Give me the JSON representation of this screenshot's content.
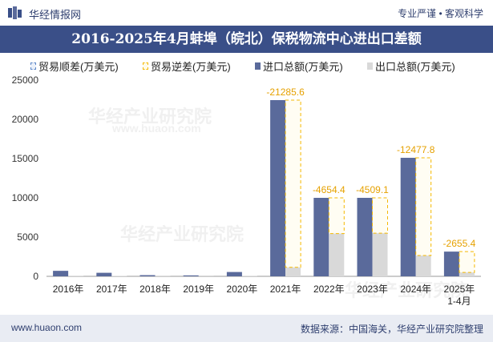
{
  "header": {
    "brand": "华经情报网",
    "slogan": "专业严谨 • 客观科学"
  },
  "footer": {
    "website": "www.huaon.com",
    "source": "数据来源：中国海关，华经产业研究院整理"
  },
  "watermark": {
    "text": "华经产业研究院",
    "url": "www.huaon.com"
  },
  "colors": {
    "import": "#5a6a9b",
    "export": "#d9d9d9",
    "deficit": "#f5b800",
    "surplus": "#5b86c8",
    "title_bg": "#3a4f88"
  },
  "chart_data": {
    "type": "bar",
    "title": "2016-2025年4月蚌埠（皖北）保税物流中心进出口差额",
    "categories": [
      "2016年",
      "2017年",
      "2018年",
      "2019年",
      "2020年",
      "2021年",
      "2022年",
      "2023年",
      "2024年",
      "2025年\n1-4月"
    ],
    "ylim": [
      0,
      25000
    ],
    "yticks": [
      0,
      5000,
      10000,
      15000,
      20000,
      25000
    ],
    "legend_position": "top",
    "series": [
      {
        "name": "贸易顺差(万美元)",
        "kind": "surplus",
        "values": [
          null,
          null,
          null,
          null,
          null,
          null,
          null,
          null,
          null,
          null
        ]
      },
      {
        "name": "贸易逆差(万美元)",
        "kind": "deficit",
        "values": [
          null,
          null,
          null,
          null,
          null,
          -21285.6,
          -4654.4,
          -4509.1,
          -12477.8,
          -2655.4
        ]
      },
      {
        "name": "进口总额(万美元)",
        "kind": "import",
        "values": [
          700,
          450,
          150,
          120,
          550,
          22450,
          10000,
          10000,
          15100,
          3150
        ]
      },
      {
        "name": "出口总额(万美元)",
        "kind": "export",
        "values": [
          80,
          60,
          30,
          20,
          40,
          1150,
          5450,
          5500,
          2650,
          500
        ]
      }
    ],
    "data_labels": [
      "-21285.6",
      "-4654.4",
      "-4509.1",
      "-12477.8",
      "-2655.4"
    ]
  }
}
